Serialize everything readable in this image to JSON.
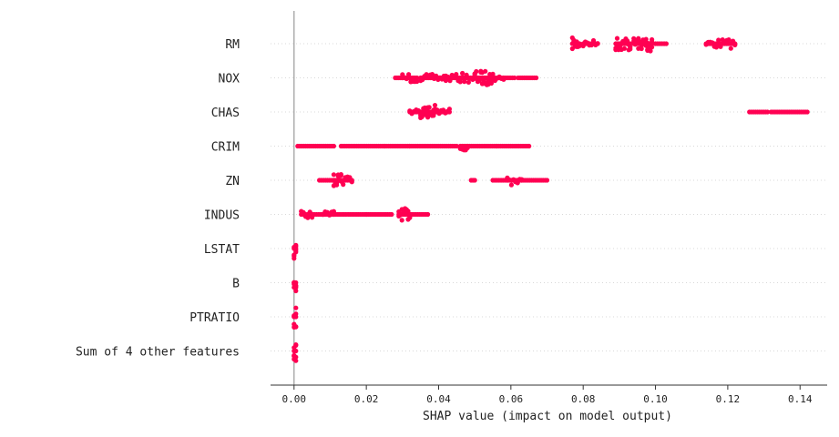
{
  "chart_data": {
    "type": "scatter",
    "subtype": "shap-beeswarm",
    "title": "",
    "xlabel": "SHAP value (impact on model output)",
    "ylabel": "",
    "xlim": [
      -0.0065,
      0.1475
    ],
    "xticks": [
      0.0,
      0.02,
      0.04,
      0.06,
      0.08,
      0.1,
      0.12,
      0.14
    ],
    "xtick_labels": [
      "0.00",
      "0.02",
      "0.04",
      "0.06",
      "0.08",
      "0.10",
      "0.12",
      "0.14"
    ],
    "zero_line": 0.0,
    "point_color": "#ff0052",
    "features": [
      {
        "name": "RM",
        "ranges": [
          [
            0.077,
            0.079,
            5
          ],
          [
            0.08,
            0.084,
            3
          ],
          [
            0.089,
            0.093,
            6
          ],
          [
            0.094,
            0.097,
            5
          ],
          [
            0.097,
            0.099,
            7
          ],
          [
            0.1,
            0.103,
            2
          ],
          [
            0.114,
            0.122,
            4
          ]
        ]
      },
      {
        "name": "NOX",
        "ranges": [
          [
            0.028,
            0.03,
            2
          ],
          [
            0.03,
            0.034,
            4
          ],
          [
            0.035,
            0.042,
            3
          ],
          [
            0.042,
            0.046,
            3
          ],
          [
            0.046,
            0.05,
            4
          ],
          [
            0.05,
            0.055,
            6
          ],
          [
            0.055,
            0.058,
            3
          ],
          [
            0.058,
            0.061,
            2
          ],
          [
            0.062,
            0.067,
            1
          ]
        ]
      },
      {
        "name": "CHAS",
        "ranges": [
          [
            0.032,
            0.035,
            3
          ],
          [
            0.035,
            0.037,
            5
          ],
          [
            0.037,
            0.039,
            6
          ],
          [
            0.039,
            0.043,
            3
          ],
          [
            0.126,
            0.131,
            1
          ],
          [
            0.132,
            0.142,
            1
          ]
        ]
      },
      {
        "name": "CRIM",
        "ranges": [
          [
            0.001,
            0.011,
            1
          ],
          [
            0.013,
            0.025,
            1
          ],
          [
            0.025,
            0.032,
            2
          ],
          [
            0.032,
            0.045,
            2
          ],
          [
            0.046,
            0.048,
            4
          ],
          [
            0.048,
            0.056,
            1
          ],
          [
            0.056,
            0.065,
            1
          ]
        ]
      },
      {
        "name": "ZN",
        "ranges": [
          [
            0.007,
            0.011,
            2
          ],
          [
            0.011,
            0.013,
            5
          ],
          [
            0.013,
            0.016,
            4
          ],
          [
            0.049,
            0.05,
            1
          ],
          [
            0.055,
            0.059,
            2
          ],
          [
            0.059,
            0.063,
            4
          ],
          [
            0.063,
            0.07,
            2
          ]
        ]
      },
      {
        "name": "INDUS",
        "ranges": [
          [
            0.002,
            0.005,
            3
          ],
          [
            0.005,
            0.008,
            2
          ],
          [
            0.008,
            0.011,
            3
          ],
          [
            0.011,
            0.02,
            2
          ],
          [
            0.02,
            0.027,
            2
          ],
          [
            0.029,
            0.032,
            5
          ],
          [
            0.032,
            0.037,
            2
          ]
        ]
      },
      {
        "name": "LSTAT",
        "ranges": [
          [
            0.0,
            0.0005,
            9
          ]
        ]
      },
      {
        "name": "B",
        "ranges": [
          [
            0.0,
            0.0005,
            9
          ]
        ]
      },
      {
        "name": "PTRATIO",
        "ranges": [
          [
            0.0,
            0.0005,
            9
          ]
        ]
      },
      {
        "name": "Sum of 4 other features",
        "ranges": [
          [
            0.0,
            0.0005,
            9
          ]
        ]
      }
    ]
  }
}
